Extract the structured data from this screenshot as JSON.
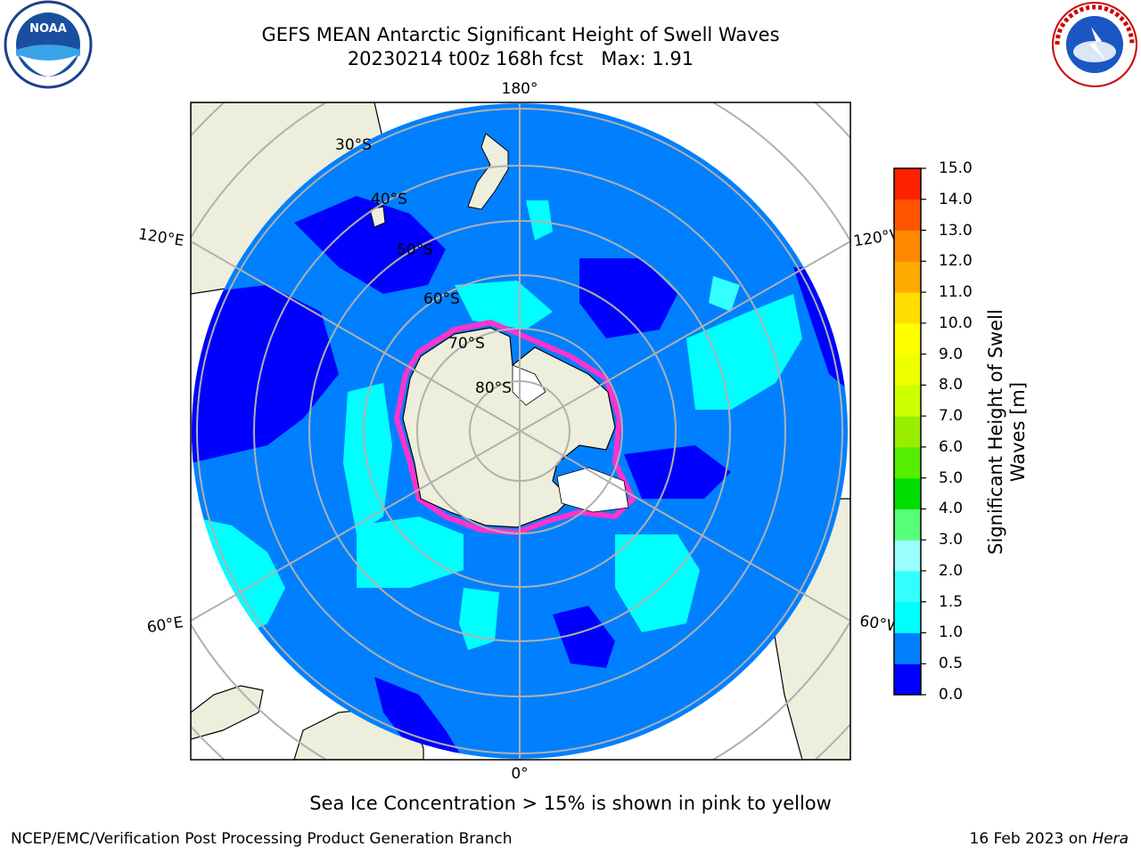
{
  "header": {
    "title_line1": "GEFS MEAN Antarctic Significant Height of Swell Waves",
    "title_line2": "20230214 t00z 168h fcst   Max: 1.91"
  },
  "logos": {
    "noaa": {
      "name": "noaa-logo",
      "text": "NOAA"
    },
    "nws": {
      "name": "nws-logo",
      "text": "NATIONAL WEATHER SERVICE"
    }
  },
  "map": {
    "projection": "south-polar-stereographic",
    "lat_labels": [
      "30°S",
      "40°S",
      "50°S",
      "60°S",
      "70°S",
      "80°S"
    ],
    "lon_labels": {
      "top": "180°",
      "bottom": "0°",
      "upper_left": "120°E",
      "lower_left": "60°E",
      "upper_right": "120°W",
      "lower_right": "60°W"
    },
    "colors": {
      "land": "#eeeedc",
      "ocean_0_0_5": "#0000ff",
      "ocean_0_5_1_0": "#0080ff",
      "ocean_1_0_1_5": "#00ffff",
      "ocean_1_5_2_0": "#33ffff",
      "sea_ice_edge": "#ff33cc",
      "grid": "#b0b0b0"
    }
  },
  "colorbar": {
    "label": "Significant Height of Swell Waves [m]",
    "ticks": [
      "0.0",
      "0.5",
      "1.0",
      "1.5",
      "2.0",
      "3.0",
      "4.0",
      "5.0",
      "6.0",
      "7.0",
      "8.0",
      "9.0",
      "10.0",
      "11.0",
      "12.0",
      "13.0",
      "14.0",
      "15.0"
    ],
    "colors": [
      "#0000ff",
      "#0080ff",
      "#00ffff",
      "#33ffff",
      "#99ffff",
      "#55ff77",
      "#00dd00",
      "#55ee00",
      "#99ee00",
      "#ccff00",
      "#eeff00",
      "#ffff00",
      "#ffdd00",
      "#ffaa00",
      "#ff8800",
      "#ff5500",
      "#ff2200",
      "#ff0000"
    ]
  },
  "caption": "Sea Ice Concentration > 15% is shown in pink to yellow",
  "footer": {
    "left": "NCEP/EMC/Verification Post Processing Product Generation Branch",
    "right_prefix": "16 Feb 2023 on ",
    "right_host": "Hera"
  }
}
